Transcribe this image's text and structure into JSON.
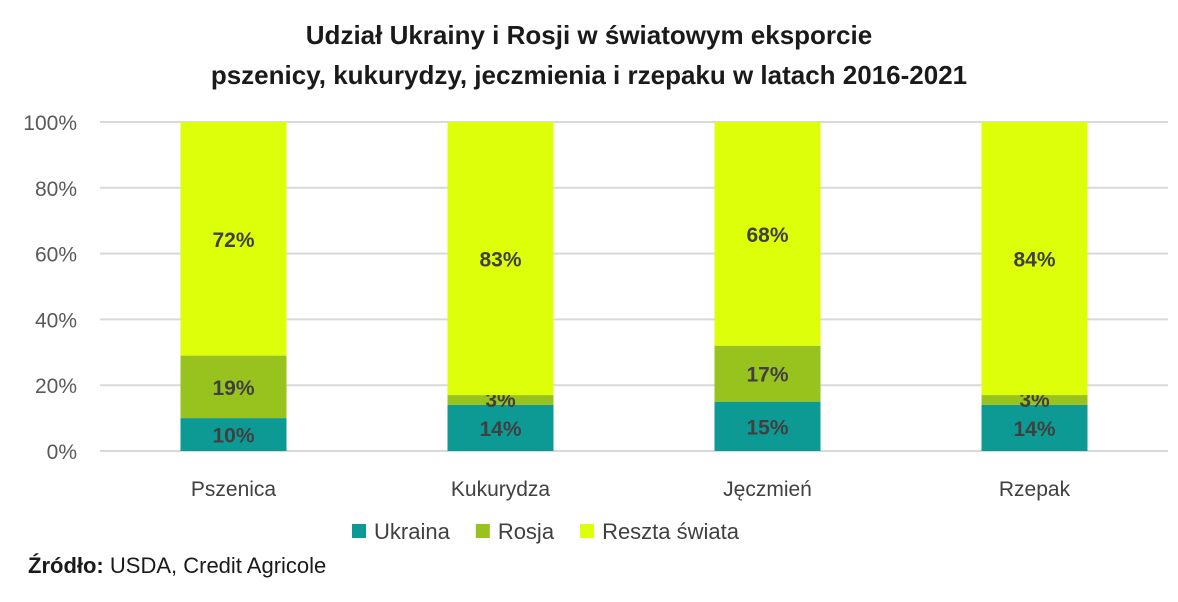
{
  "chart_data": {
    "type": "bar",
    "stacked": true,
    "title": [
      "Udział Ukrainy i Rosji w światowym eksporcie",
      "pszenicy, kukurydzy, jeczmienia i rzepaku w latach 2016-2021"
    ],
    "categories": [
      "Pszenica",
      "Kukurydza",
      "Jęczmień",
      "Rzepak"
    ],
    "series": [
      {
        "name": "Ukraina",
        "values": [
          10,
          14,
          15,
          14
        ],
        "labels": [
          "10%",
          "14%",
          "15%",
          "14%"
        ],
        "color": "#0e9a94"
      },
      {
        "name": "Rosja",
        "values": [
          19,
          3,
          17,
          3
        ],
        "labels": [
          "19%",
          "3%",
          "17%",
          "3%"
        ],
        "color": "#98c21d"
      },
      {
        "name": "Reszta świata",
        "values": [
          72,
          83,
          68,
          84
        ],
        "labels": [
          "72%",
          "83%",
          "68%",
          "84%"
        ],
        "color": "#deff0a"
      }
    ],
    "ylim": [
      0,
      100
    ],
    "yticks": [
      "0%",
      "20%",
      "40%",
      "60%",
      "80%",
      "100%"
    ],
    "grid": true,
    "legend": "bottom"
  },
  "source": {
    "label": "Źródło:",
    "text": " USDA, Credit Agricole"
  }
}
